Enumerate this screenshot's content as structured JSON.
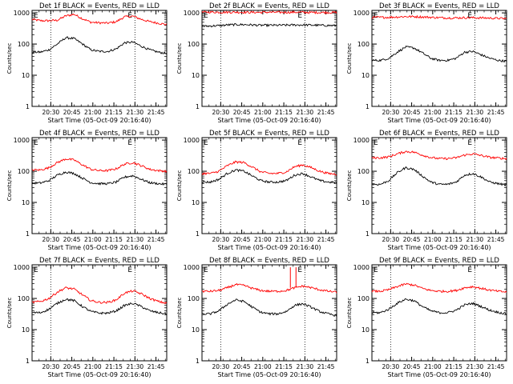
{
  "chart_data": [
    {
      "type": "line",
      "title": "Det 1f BLACK = Events, RED = LLD",
      "xlabel": "Start Time (05-Oct-09 20:16:40)",
      "ylabel": "Counts/sec",
      "x_ticks": [
        "20:30",
        "20:45",
        "21:00",
        "21:15",
        "21:30",
        "21:45"
      ],
      "y_ticks": [
        "1",
        "10",
        "100",
        "1000"
      ],
      "y_scale": "log",
      "ylim": [
        1,
        1200
      ],
      "xlim_minutes": [
        0,
        96
      ],
      "markers": [
        "E",
        "E"
      ],
      "series": [
        {
          "color": "#ff0000",
          "x": [
            0,
            6,
            12,
            18,
            24,
            30,
            36,
            42,
            48,
            54,
            60,
            66,
            72,
            78,
            84,
            90,
            96
          ],
          "values": [
            620,
            560,
            560,
            580,
            800,
            900,
            650,
            500,
            480,
            470,
            520,
            750,
            780,
            620,
            520,
            470,
            420
          ]
        },
        {
          "color": "#000000",
          "x": [
            0,
            6,
            12,
            18,
            24,
            30,
            36,
            42,
            48,
            54,
            60,
            66,
            72,
            78,
            84,
            90,
            96
          ],
          "values": [
            55,
            55,
            65,
            100,
            160,
            150,
            100,
            65,
            58,
            58,
            70,
            110,
            115,
            85,
            65,
            55,
            50
          ]
        }
      ]
    },
    {
      "type": "line",
      "title": "Det 2f BLACK = Events, RED = LLD",
      "xlabel": "Start Time (05-Oct-09 20:16:40)",
      "ylabel": "Counts/sec",
      "x_ticks": [
        "20:30",
        "20:45",
        "21:00",
        "21:15",
        "21:30",
        "21:45"
      ],
      "y_ticks": [
        "1",
        "10",
        "100",
        "1000"
      ],
      "y_scale": "log",
      "ylim": [
        1,
        1200
      ],
      "xlim_minutes": [
        0,
        96
      ],
      "markers": [
        "E",
        "E"
      ],
      "series": [
        {
          "color": "#ff0000",
          "x": [
            0,
            6,
            12,
            18,
            24,
            30,
            36,
            42,
            48,
            54,
            60,
            66,
            72,
            78,
            84,
            90,
            96
          ],
          "values": [
            1050,
            1060,
            1050,
            1050,
            1050,
            1040,
            1040,
            1040,
            1050,
            1040,
            1040,
            1050,
            1040,
            1030,
            1030,
            1030,
            1030
          ]
        },
        {
          "color": "#000000",
          "x": [
            0,
            6,
            12,
            18,
            24,
            30,
            36,
            42,
            48,
            54,
            60,
            66,
            72,
            78,
            84,
            90,
            96
          ],
          "values": [
            370,
            380,
            390,
            410,
            420,
            420,
            410,
            400,
            400,
            400,
            405,
            410,
            410,
            405,
            400,
            395,
            390
          ]
        }
      ]
    },
    {
      "type": "line",
      "title": "Det 3f BLACK = Events, RED = LLD",
      "xlabel": "Start Time (05-Oct-09 20:16:40)",
      "ylabel": "Counts/sec",
      "x_ticks": [
        "20:30",
        "20:45",
        "21:00",
        "21:15",
        "21:30",
        "21:45"
      ],
      "y_ticks": [
        "1",
        "10",
        "100",
        "1000"
      ],
      "y_scale": "log",
      "ylim": [
        1,
        1200
      ],
      "xlim_minutes": [
        0,
        96
      ],
      "markers": [
        "E",
        "E"
      ],
      "series": [
        {
          "color": "#ff0000",
          "x": [
            0,
            6,
            12,
            18,
            24,
            30,
            36,
            42,
            48,
            54,
            60,
            66,
            72,
            78,
            84,
            90,
            96
          ],
          "values": [
            720,
            720,
            720,
            740,
            760,
            760,
            740,
            720,
            700,
            690,
            690,
            700,
            700,
            690,
            680,
            670,
            650
          ]
        },
        {
          "color": "#000000",
          "x": [
            0,
            6,
            12,
            18,
            24,
            30,
            36,
            42,
            48,
            54,
            60,
            66,
            72,
            78,
            84,
            90,
            96
          ],
          "values": [
            30,
            30,
            35,
            55,
            80,
            75,
            52,
            35,
            30,
            30,
            35,
            55,
            58,
            45,
            35,
            30,
            28
          ]
        }
      ]
    },
    {
      "type": "line",
      "title": "Det 4f BLACK = Events, RED = LLD",
      "xlabel": "Start Time (05-Oct-09 20:16:40)",
      "ylabel": "Counts/sec",
      "x_ticks": [
        "20:30",
        "20:45",
        "21:00",
        "21:15",
        "21:30",
        "21:45"
      ],
      "y_ticks": [
        "1",
        "10",
        "100",
        "1000"
      ],
      "y_scale": "log",
      "ylim": [
        1,
        1200
      ],
      "xlim_minutes": [
        0,
        96
      ],
      "markers": [
        "E",
        "E"
      ],
      "series": [
        {
          "color": "#ff0000",
          "x": [
            0,
            6,
            12,
            18,
            24,
            30,
            36,
            42,
            48,
            54,
            60,
            66,
            72,
            78,
            84,
            90,
            96
          ],
          "values": [
            110,
            110,
            130,
            190,
            250,
            230,
            160,
            115,
            105,
            105,
            120,
            170,
            190,
            150,
            115,
            105,
            100
          ]
        },
        {
          "color": "#000000",
          "x": [
            0,
            6,
            12,
            18,
            24,
            30,
            36,
            42,
            48,
            54,
            60,
            66,
            72,
            78,
            84,
            90,
            96
          ],
          "values": [
            42,
            42,
            50,
            75,
            95,
            85,
            60,
            43,
            40,
            40,
            45,
            65,
            72,
            55,
            43,
            40,
            38
          ]
        }
      ]
    },
    {
      "type": "line",
      "title": "Det 5f BLACK = Events, RED = LLD",
      "xlabel": "Start Time (05-Oct-09 20:16:40)",
      "ylabel": "Counts/sec",
      "x_ticks": [
        "20:30",
        "20:45",
        "21:00",
        "21:15",
        "21:30",
        "21:45"
      ],
      "y_ticks": [
        "1",
        "10",
        "100",
        "1000"
      ],
      "y_scale": "log",
      "ylim": [
        1,
        1200
      ],
      "xlim_minutes": [
        0,
        96
      ],
      "markers": [
        "E",
        "E"
      ],
      "series": [
        {
          "color": "#ff0000",
          "x": [
            0,
            6,
            12,
            18,
            24,
            30,
            36,
            42,
            48,
            54,
            60,
            66,
            72,
            78,
            84,
            90,
            96
          ],
          "values": [
            85,
            85,
            100,
            150,
            200,
            190,
            135,
            95,
            85,
            85,
            95,
            140,
            160,
            130,
            100,
            85,
            80
          ]
        },
        {
          "color": "#000000",
          "x": [
            0,
            6,
            12,
            18,
            24,
            30,
            36,
            42,
            48,
            54,
            60,
            66,
            72,
            78,
            84,
            90,
            96
          ],
          "values": [
            45,
            45,
            55,
            85,
            110,
            100,
            70,
            50,
            45,
            45,
            50,
            75,
            85,
            65,
            50,
            45,
            43
          ]
        }
      ]
    },
    {
      "type": "line",
      "title": "Det 6f BLACK = Events, RED = LLD",
      "xlabel": "Start Time (05-Oct-09 20:16:40)",
      "ylabel": "Counts/sec",
      "x_ticks": [
        "20:30",
        "20:45",
        "21:00",
        "21:15",
        "21:30",
        "21:45"
      ],
      "y_ticks": [
        "1",
        "10",
        "100",
        "1000"
      ],
      "y_scale": "log",
      "ylim": [
        1,
        1200
      ],
      "xlim_minutes": [
        0,
        96
      ],
      "markers": [
        "E",
        "E"
      ],
      "series": [
        {
          "color": "#ff0000",
          "x": [
            0,
            6,
            12,
            18,
            24,
            30,
            36,
            42,
            48,
            54,
            60,
            66,
            72,
            78,
            84,
            90,
            96
          ],
          "values": [
            270,
            270,
            290,
            360,
            430,
            410,
            330,
            275,
            255,
            255,
            270,
            330,
            360,
            320,
            280,
            265,
            255
          ]
        },
        {
          "color": "#000000",
          "x": [
            0,
            6,
            12,
            18,
            24,
            30,
            36,
            42,
            48,
            54,
            60,
            66,
            72,
            78,
            84,
            90,
            96
          ],
          "values": [
            38,
            38,
            50,
            90,
            130,
            115,
            70,
            45,
            38,
            38,
            45,
            75,
            85,
            65,
            45,
            40,
            36
          ]
        }
      ]
    },
    {
      "type": "line",
      "title": "Det 7f BLACK = Events, RED = LLD",
      "xlabel": "Start Time (05-Oct-09 20:16:40)",
      "ylabel": "Counts/sec",
      "x_ticks": [
        "20:30",
        "20:45",
        "21:00",
        "21:15",
        "21:30",
        "21:45"
      ],
      "y_ticks": [
        "1",
        "10",
        "100",
        "1000"
      ],
      "y_scale": "log",
      "ylim": [
        1,
        1200
      ],
      "xlim_minutes": [
        0,
        96
      ],
      "markers": [
        "E",
        "E"
      ],
      "series": [
        {
          "color": "#ff0000",
          "x": [
            0,
            6,
            12,
            18,
            24,
            30,
            36,
            42,
            48,
            54,
            60,
            66,
            72,
            78,
            84,
            90,
            96
          ],
          "values": [
            75,
            80,
            100,
            160,
            220,
            200,
            130,
            85,
            75,
            75,
            90,
            150,
            175,
            140,
            100,
            80,
            70
          ]
        },
        {
          "color": "#000000",
          "x": [
            0,
            6,
            12,
            18,
            24,
            30,
            36,
            42,
            48,
            54,
            60,
            66,
            72,
            78,
            84,
            90,
            96
          ],
          "values": [
            35,
            35,
            45,
            70,
            95,
            85,
            55,
            38,
            34,
            34,
            40,
            60,
            70,
            55,
            40,
            35,
            32
          ]
        }
      ]
    },
    {
      "type": "line",
      "title": "Det 8f BLACK = Events, RED = LLD",
      "xlabel": "Start Time (05-Oct-09 20:16:40)",
      "ylabel": "Counts/sec",
      "x_ticks": [
        "20:30",
        "20:45",
        "21:00",
        "21:15",
        "21:30",
        "21:45"
      ],
      "y_ticks": [
        "1",
        "10",
        "100",
        "1000"
      ],
      "y_scale": "log",
      "ylim": [
        1,
        1200
      ],
      "xlim_minutes": [
        0,
        96
      ],
      "markers": [
        "E",
        "E"
      ],
      "spikes": [
        {
          "x": 63,
          "value": 1000
        },
        {
          "x": 67,
          "value": 1000
        }
      ],
      "series": [
        {
          "color": "#ff0000",
          "x": [
            0,
            6,
            12,
            18,
            24,
            30,
            36,
            42,
            48,
            54,
            60,
            66,
            72,
            78,
            84,
            90,
            96
          ],
          "values": [
            170,
            170,
            180,
            220,
            280,
            260,
            210,
            180,
            170,
            170,
            180,
            220,
            250,
            220,
            190,
            170,
            160
          ]
        },
        {
          "color": "#000000",
          "x": [
            0,
            6,
            12,
            18,
            24,
            30,
            36,
            42,
            48,
            54,
            60,
            66,
            72,
            78,
            84,
            90,
            96
          ],
          "values": [
            32,
            32,
            40,
            65,
            90,
            80,
            52,
            36,
            32,
            32,
            38,
            60,
            68,
            52,
            38,
            32,
            28
          ]
        }
      ]
    },
    {
      "type": "line",
      "title": "Det 9f BLACK = Events, RED = LLD",
      "xlabel": "Start Time (05-Oct-09 20:16:40)",
      "ylabel": "Counts/sec",
      "x_ticks": [
        "20:30",
        "20:45",
        "21:00",
        "21:15",
        "21:30",
        "21:45"
      ],
      "y_ticks": [
        "1",
        "10",
        "100",
        "1000"
      ],
      "y_scale": "log",
      "ylim": [
        1,
        1200
      ],
      "xlim_minutes": [
        0,
        96
      ],
      "markers": [
        "E",
        "E"
      ],
      "series": [
        {
          "color": "#ff0000",
          "x": [
            0,
            6,
            12,
            18,
            24,
            30,
            36,
            42,
            48,
            54,
            60,
            66,
            72,
            78,
            84,
            90,
            96
          ],
          "values": [
            170,
            170,
            190,
            240,
            290,
            270,
            210,
            180,
            170,
            170,
            180,
            220,
            240,
            210,
            185,
            170,
            160
          ]
        },
        {
          "color": "#000000",
          "x": [
            0,
            6,
            12,
            18,
            24,
            30,
            36,
            42,
            48,
            54,
            60,
            66,
            72,
            78,
            84,
            90,
            96
          ],
          "values": [
            35,
            35,
            45,
            70,
            95,
            85,
            55,
            40,
            35,
            35,
            42,
            62,
            70,
            55,
            42,
            36,
            32
          ]
        }
      ]
    }
  ]
}
